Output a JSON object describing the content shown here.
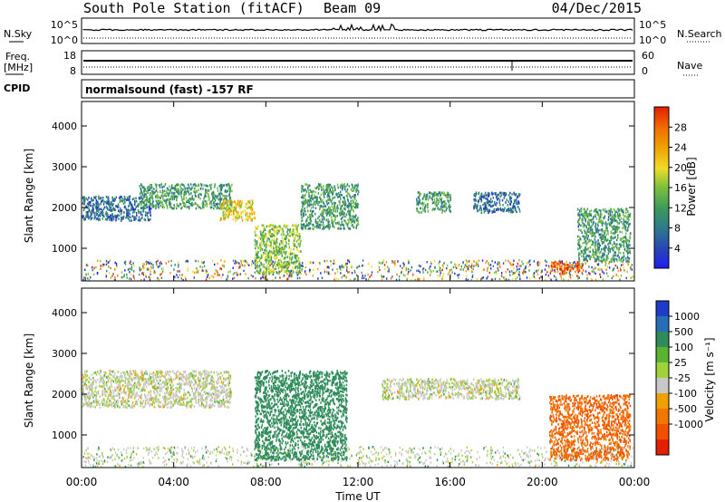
{
  "header": {
    "station": "South Pole Station (fitACF)",
    "beam": "Beam 09",
    "date": "04/Dec/2015"
  },
  "noise_panel": {
    "left_label": "N.Sky",
    "right_label": "N.Search",
    "left_ticks": [
      "10^5",
      "10^0"
    ],
    "right_ticks": [
      "10^5",
      "10^0"
    ]
  },
  "freq_panel": {
    "left_label_line1": "Freq.",
    "left_label_line2": "[MHz]",
    "left_ticks": [
      "18",
      "8"
    ],
    "right_label": "Nave",
    "right_ticks": [
      "60",
      "0"
    ]
  },
  "cpid_panel": {
    "label": "CPID",
    "text": "normalsound (fast) -157 RF"
  },
  "chart_data": [
    {
      "type": "heatmap",
      "name": "power",
      "ylabel": "Slant Range [km]",
      "xlabel": "",
      "yticks": [
        1000,
        2000,
        3000,
        4000
      ],
      "ylim": [
        200,
        4600
      ],
      "xlim": [
        0,
        24
      ],
      "colorbar_label": "Power [dB]",
      "colorbar_ticks": [
        4,
        8,
        12,
        16,
        20,
        24,
        28
      ],
      "colorbar_range": [
        0,
        32
      ],
      "colorbar_colors": [
        "#1e1ef0",
        "#2846b4",
        "#2e7a8c",
        "#3c9a5a",
        "#7ac040",
        "#f0dc28",
        "#f0a000",
        "#f06e00",
        "#e61e00"
      ],
      "regions": [
        {
          "x0": 0.0,
          "x1": 3.0,
          "y0": 1700,
          "y1": 2300,
          "level": 8
        },
        {
          "x0": 2.5,
          "x1": 6.5,
          "y0": 2000,
          "y1": 2600,
          "level": 12
        },
        {
          "x0": 6.0,
          "x1": 7.5,
          "y0": 1700,
          "y1": 2200,
          "level": 20
        },
        {
          "x0": 7.5,
          "x1": 9.5,
          "y0": 400,
          "y1": 1600,
          "level": 16
        },
        {
          "x0": 9.5,
          "x1": 12.0,
          "y0": 1500,
          "y1": 2600,
          "level": 12
        },
        {
          "x0": 14.5,
          "x1": 16.0,
          "y0": 1900,
          "y1": 2400,
          "level": 12
        },
        {
          "x0": 17.0,
          "x1": 19.0,
          "y0": 1900,
          "y1": 2400,
          "level": 8
        },
        {
          "x0": 20.3,
          "x1": 21.8,
          "y0": 400,
          "y1": 700,
          "level": 28
        },
        {
          "x0": 21.5,
          "x1": 23.8,
          "y0": 700,
          "y1": 2000,
          "level": 12
        }
      ]
    },
    {
      "type": "heatmap",
      "name": "velocity",
      "ylabel": "Slant Range [km]",
      "xlabel": "Time UT",
      "xticks": [
        "00:00",
        "04:00",
        "08:00",
        "12:00",
        "16:00",
        "20:00",
        "00:00"
      ],
      "yticks": [
        1000,
        2000,
        3000,
        4000
      ],
      "ylim": [
        200,
        4600
      ],
      "xlim": [
        0,
        24
      ],
      "colorbar_label": "Velocity [m s⁻¹]",
      "colorbar_ticks": [
        "1000",
        "500",
        "100",
        "25",
        "-25",
        "-100",
        "-500",
        "-1000"
      ],
      "colorbar_colors": [
        "#1e3cc8",
        "#286eb4",
        "#2e8c5a",
        "#5ab432",
        "#a0d23c",
        "#c8c8c8",
        "#f0a000",
        "#f07800",
        "#f05000",
        "#e61e00"
      ],
      "regions": [
        {
          "x0": 0.0,
          "x1": 6.5,
          "y0": 1700,
          "y1": 2600,
          "level": 0
        },
        {
          "x0": 7.5,
          "x1": 11.5,
          "y0": 400,
          "y1": 2600,
          "level": 250
        },
        {
          "x0": 13.0,
          "x1": 19.0,
          "y0": 1900,
          "y1": 2400,
          "level": 0
        },
        {
          "x0": 20.3,
          "x1": 23.8,
          "y0": 400,
          "y1": 2000,
          "level": -300
        }
      ]
    }
  ]
}
